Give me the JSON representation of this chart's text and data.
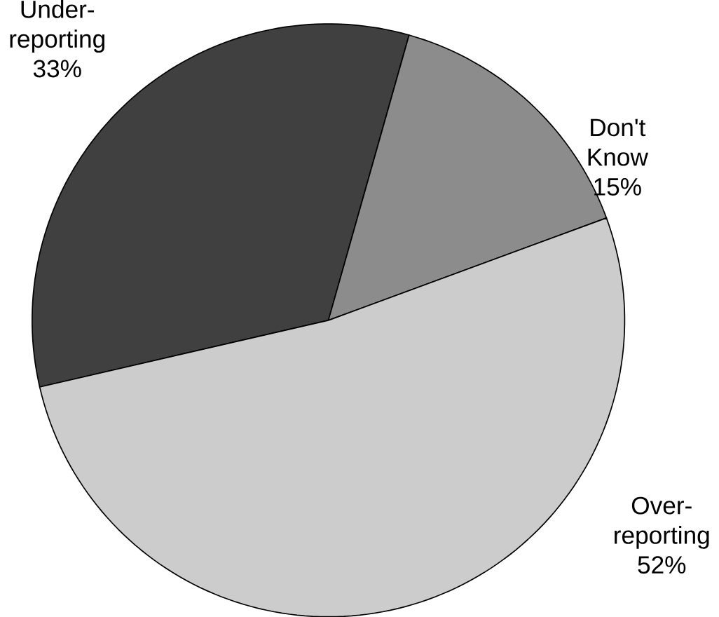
{
  "chart_data": {
    "type": "pie",
    "categories": [
      "Under-reporting",
      "Don't Know",
      "Over-reporting"
    ],
    "values": [
      33,
      15,
      52
    ],
    "colors": [
      "#404040",
      "#8c8c8c",
      "#cccccc"
    ],
    "value_labels": [
      "33%",
      "15%",
      "52%"
    ]
  }
}
